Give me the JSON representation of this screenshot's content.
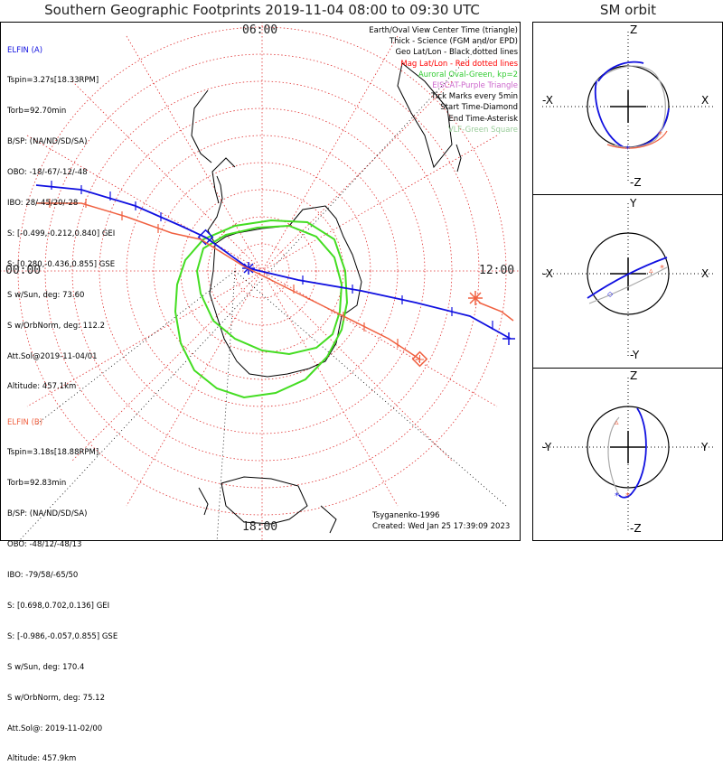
{
  "title": "Southern Geographic Footprints 2019-11-04 08:00 to 09:30 UTC",
  "sm_title": "SM orbit",
  "clock_labels": {
    "top": "06:00",
    "left": "00:00",
    "right": "12:00",
    "bottom": "18:00"
  },
  "elfin_a": {
    "name": "ELFIN (A)",
    "lines": [
      "Tspin=3.27s[18.33RPM]",
      "Torb=92.70min",
      "B/SP: (NA/ND/SD/SA)",
      "OBO: -18/-67/-12/-48",
      "IBO: 28/-45/20/-28",
      "S: [-0.499,-0.212,0.840] GEI",
      "S: [0.280,-0.436,0.855] GSE",
      "S w/Sun, deg: 73.60",
      "S w/OrbNorm, deg: 112.2",
      "Att.Sol@2019-11-04/01",
      "Altitude: 457.1km"
    ]
  },
  "elfin_b": {
    "name": "ELFIN (B)",
    "lines": [
      "Tspin=3.18s[18.88RPM]",
      "Torb=92.83min",
      "B/SP: (NA/ND/SD/SA)",
      "OBO: -48/12/-48/13",
      "IBO: -79/58/-65/50",
      "S: [0.698,0.702,0.136] GEI",
      "S: [-0.986,-0.057,0.855] GSE",
      "S w/Sun, deg: 170.4",
      "S w/OrbNorm, deg: 75.12",
      "Att.Sol@: 2019-11-02/00",
      "Altitude: 457.9km"
    ]
  },
  "legend": [
    {
      "text": "Earth/Oval View Center Time (triangle)",
      "color": "#000000"
    },
    {
      "text": "Thick - Science (FGM and/or EPD)",
      "color": "#000000"
    },
    {
      "text": "Geo Lat/Lon - Black dotted lines",
      "color": "#000000"
    },
    {
      "text": "Mag Lat/Lon - Red dotted lines",
      "color": "#ff0000"
    },
    {
      "text": "Auroral Oval-Green, kp=2",
      "color": "#33cc33"
    },
    {
      "text": "EISCAT-Purple Triangle",
      "color": "#cc66cc"
    },
    {
      "text": "Tick Marks every 5min",
      "color": "#000000"
    },
    {
      "text": "Start Time-Diamond",
      "color": "#000000"
    },
    {
      "text": "End Time-Asterisk",
      "color": "#000000"
    },
    {
      "text": "VLF-Green Square",
      "color": "#99cc99"
    }
  ],
  "credits": {
    "model": "Tsyganenko-1996",
    "created": "Created: Wed Jan 25 17:39:09 2023"
  },
  "sm_panels": [
    {
      "top": "Z",
      "bottom": "-Z",
      "left": "-X",
      "right": "X"
    },
    {
      "top": "Y",
      "bottom": "-Y",
      "left": "-X",
      "right": "X"
    },
    {
      "top": "Z",
      "bottom": "-Z",
      "left": "-Y",
      "right": "Y"
    }
  ],
  "colors": {
    "elfin_a": "#1010e0",
    "elfin_b": "#f06040",
    "oval": "#44dd22",
    "mag_grid": "#e03030",
    "geo_grid": "#000000",
    "sm_grey": "#aaaaaa"
  }
}
